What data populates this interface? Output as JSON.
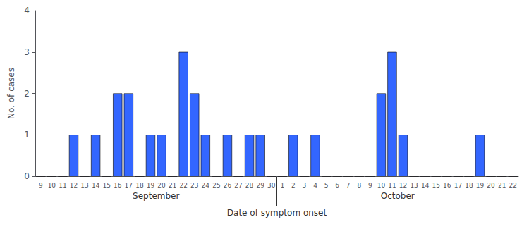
{
  "chart_data": {
    "type": "bar",
    "xlabel": "Date of symptom onset",
    "ylabel": "No. of cases",
    "color": "#3366ff",
    "edgecolor": "#000000",
    "categories": [
      "9",
      "10",
      "11",
      "12",
      "13",
      "14",
      "15",
      "16",
      "17",
      "18",
      "19",
      "20",
      "21",
      "22",
      "23",
      "24",
      "25",
      "26",
      "27",
      "28",
      "29",
      "30",
      "1",
      "2",
      "3",
      "4",
      "5",
      "6",
      "7",
      "8",
      "9",
      "10",
      "11",
      "12",
      "13",
      "14",
      "15",
      "16",
      "17",
      "18",
      "19",
      "20",
      "21",
      "22"
    ],
    "values": [
      0,
      0,
      0,
      1,
      0,
      1,
      0,
      2,
      2,
      0,
      1,
      1,
      0,
      3,
      2,
      1,
      0,
      1,
      0,
      1,
      1,
      0,
      0,
      1,
      0,
      1,
      0,
      0,
      0,
      0,
      0,
      2,
      3,
      1,
      0,
      0,
      0,
      0,
      0,
      0,
      1,
      0,
      0,
      0
    ],
    "annotations": [
      "September",
      "October"
    ],
    "ylim": [
      0,
      4
    ],
    "yticks": [
      0,
      1,
      2,
      3,
      4
    ],
    "grid": false
  }
}
